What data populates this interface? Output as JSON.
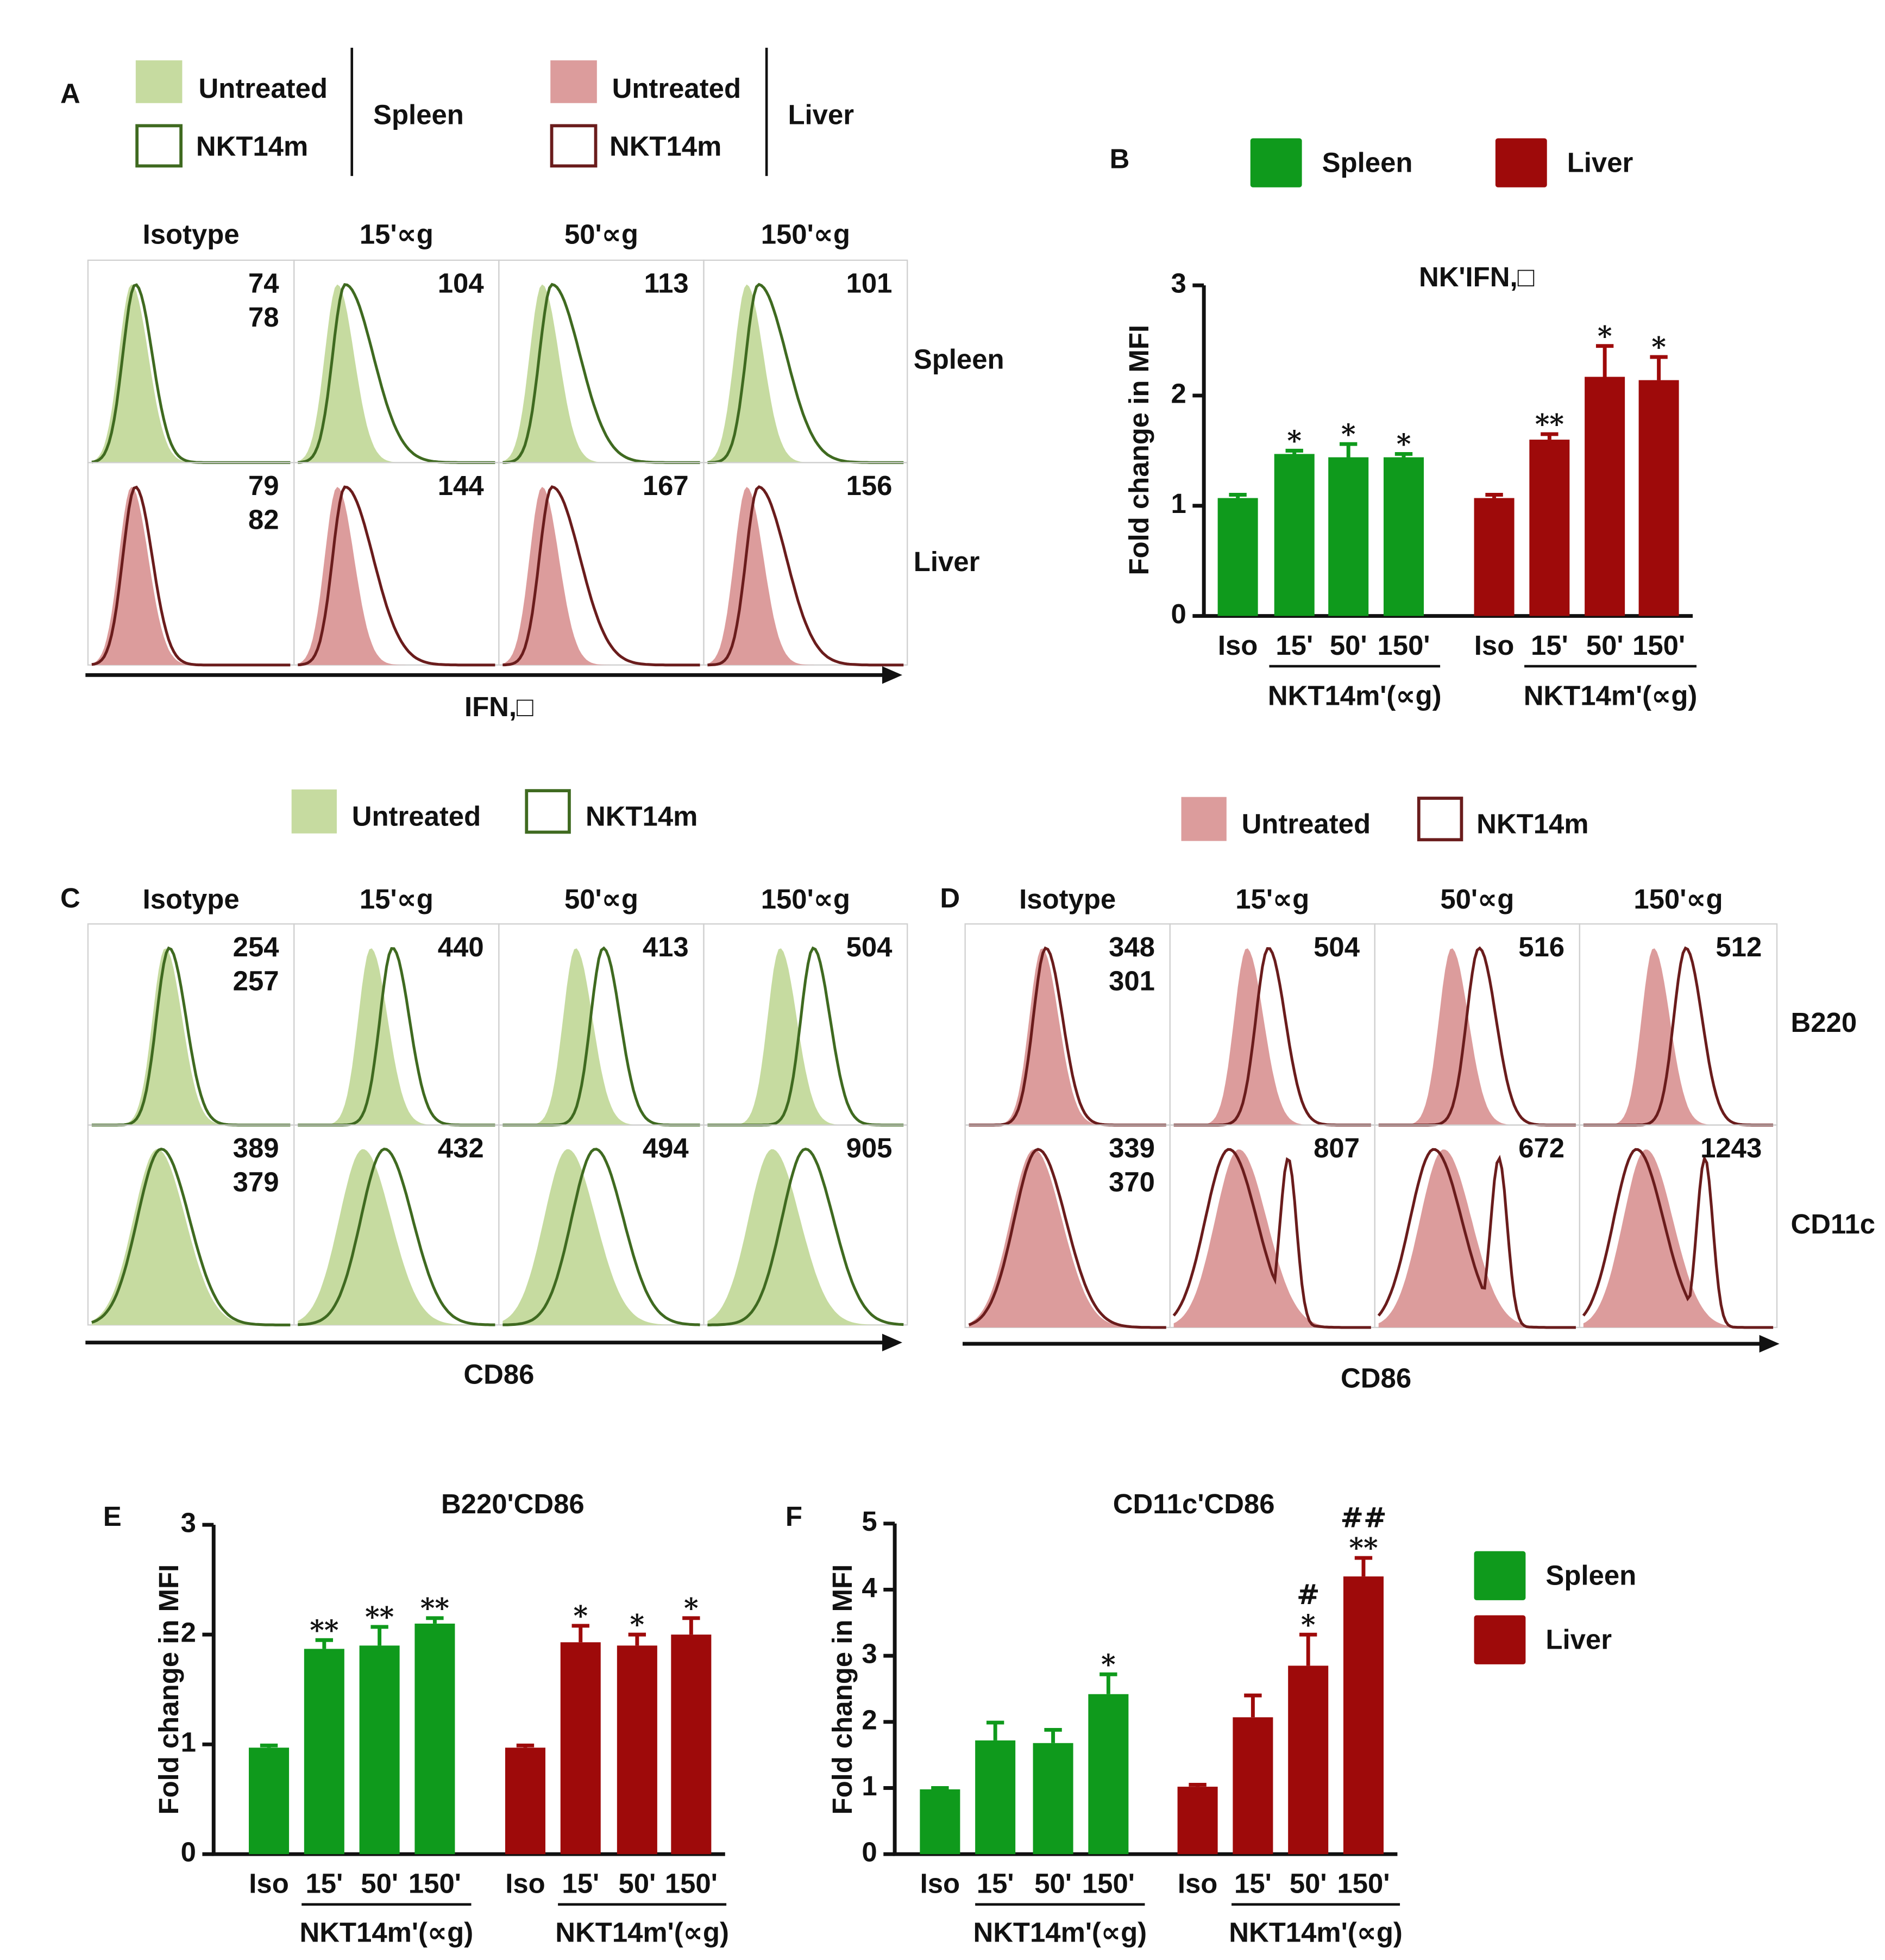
{
  "flow_panels": [
    {
      "letter": "A",
      "legend_groups": [
        {
          "entries": [
            "Untreated",
            "NKT14m"
          ],
          "tissue": "Spleen",
          "colors": {
            "fill": "#c6dba0",
            "line": "#3f6a20"
          }
        },
        {
          "entries": [
            "Untreated",
            "NKT14m"
          ],
          "tissue": "Liver",
          "colors": {
            "fill": "#dc9c9c",
            "line": "#6a1c1c"
          }
        }
      ],
      "columns": [
        "Isotype",
        "15'∝g",
        "50'∝g",
        "150'∝g"
      ],
      "rows": [
        "Spleen",
        "Liver"
      ],
      "mfi": [
        [
          [
            74,
            78
          ],
          [
            104
          ],
          [
            113
          ],
          [
            101
          ]
        ],
        [
          [
            79,
            82
          ],
          [
            144
          ],
          [
            167
          ],
          [
            156
          ]
        ]
      ],
      "x_label": "IFN,□"
    },
    {
      "letter": "C",
      "legend_groups": [
        {
          "entries": [
            "Untreated",
            "NKT14m"
          ],
          "colors": {
            "fill": "#c6dba0",
            "line": "#3f6a20"
          }
        }
      ],
      "columns": [
        "Isotype",
        "15'∝g",
        "50'∝g",
        "150'∝g"
      ],
      "mfi": [
        [
          [
            254,
            257
          ],
          [
            440
          ],
          [
            413
          ],
          [
            504
          ]
        ],
        [
          [
            389,
            379
          ],
          [
            432
          ],
          [
            494
          ],
          [
            905
          ]
        ]
      ],
      "x_label": "CD86"
    },
    {
      "letter": "D",
      "legend_groups": [
        {
          "entries": [
            "Untreated",
            "NKT14m"
          ],
          "colors": {
            "fill": "#dc9c9c",
            "line": "#6a1c1c"
          }
        }
      ],
      "columns": [
        "Isotype",
        "15'∝g",
        "50'∝g",
        "150'∝g"
      ],
      "rows": [
        "B220",
        "CD11c"
      ],
      "mfi": [
        [
          [
            348,
            301
          ],
          [
            504
          ],
          [
            516
          ],
          [
            512
          ]
        ],
        [
          [
            339,
            370
          ],
          [
            807
          ],
          [
            672
          ],
          [
            1243
          ]
        ]
      ],
      "x_label": "CD86"
    }
  ],
  "chart_data": [
    {
      "type": "bar",
      "letter": "B",
      "title": "NK'IFN,□",
      "y_label": "Fold change in MFI",
      "categories": [
        "Iso",
        "15'",
        "50'",
        "150'",
        "Iso",
        "15'",
        "50'",
        "150'"
      ],
      "group_labels": [
        "NKT14m'(∝g)",
        "NKT14m'(∝g)"
      ],
      "series": [
        {
          "name": "Spleen",
          "color": "#0f9a1c",
          "values": [
            1.07,
            1.47,
            1.44,
            1.44,
            null,
            null,
            null,
            null
          ],
          "errors": [
            0.03,
            0.03,
            0.12,
            0.03,
            null,
            null,
            null,
            null
          ],
          "annotations": [
            null,
            [
              "*"
            ],
            [
              "*"
            ],
            [
              "*"
            ],
            null,
            null,
            null,
            null
          ]
        },
        {
          "name": "Liver",
          "color": "#9e0a0a",
          "values": [
            null,
            null,
            null,
            null,
            1.07,
            1.6,
            2.17,
            2.14
          ],
          "errors": [
            null,
            null,
            null,
            null,
            0.03,
            0.05,
            0.28,
            0.21
          ],
          "annotations": [
            null,
            null,
            null,
            null,
            null,
            [
              "**"
            ],
            [
              "*"
            ],
            [
              "*"
            ]
          ]
        }
      ],
      "ylim": [
        0,
        3
      ],
      "yticks": [
        0,
        1,
        2,
        3
      ],
      "legend": "top"
    },
    {
      "type": "bar",
      "letter": "E",
      "title": "B220'CD86",
      "y_label": "Fold change in MFI",
      "categories": [
        "Iso",
        "15'",
        "50'",
        "150'",
        "Iso",
        "15'",
        "50'",
        "150'"
      ],
      "group_labels": [
        "NKT14m'(∝g)",
        "NKT14m'(∝g)"
      ],
      "series": [
        {
          "color": "#0f9a1c",
          "values": [
            0.97,
            1.87,
            1.9,
            2.1,
            null,
            null,
            null,
            null
          ],
          "errors": [
            0.02,
            0.08,
            0.17,
            0.05,
            null,
            null,
            null,
            null
          ],
          "annotations": [
            null,
            [
              "**"
            ],
            [
              "**"
            ],
            [
              "**"
            ],
            null,
            null,
            null,
            null
          ]
        },
        {
          "color": "#9e0a0a",
          "values": [
            null,
            null,
            null,
            null,
            0.97,
            1.93,
            1.9,
            2.0
          ],
          "errors": [
            null,
            null,
            null,
            null,
            0.02,
            0.15,
            0.1,
            0.15
          ],
          "annotations": [
            null,
            null,
            null,
            null,
            null,
            [
              "*"
            ],
            [
              "*"
            ],
            [
              "*"
            ]
          ]
        }
      ],
      "ylim": [
        0,
        3
      ],
      "yticks": [
        0,
        1,
        2,
        3
      ]
    },
    {
      "type": "bar",
      "letter": "F",
      "title": "CD11c'CD86",
      "y_label": "Fold change in MFI",
      "categories": [
        "Iso",
        "15'",
        "50'",
        "150'",
        "Iso",
        "15'",
        "50'",
        "150'"
      ],
      "group_labels": [
        "NKT14m'(∝g)",
        "NKT14m'(∝g)"
      ],
      "series": [
        {
          "name": "Spleen",
          "color": "#0f9a1c",
          "values": [
            0.98,
            1.72,
            1.68,
            2.42,
            null,
            null,
            null,
            null
          ],
          "errors": [
            0.02,
            0.27,
            0.2,
            0.3,
            null,
            null,
            null,
            null
          ],
          "annotations": [
            null,
            null,
            null,
            [
              "*"
            ],
            null,
            null,
            null,
            null
          ]
        },
        {
          "name": "Liver",
          "color": "#9e0a0a",
          "values": [
            null,
            null,
            null,
            null,
            1.02,
            2.07,
            2.85,
            4.2
          ],
          "errors": [
            null,
            null,
            null,
            null,
            0.03,
            0.33,
            0.47,
            0.28
          ],
          "annotations": [
            null,
            null,
            null,
            null,
            null,
            null,
            [
              "#",
              "*"
            ],
            [
              "##",
              "**"
            ]
          ]
        }
      ],
      "ylim": [
        0,
        5
      ],
      "yticks": [
        0,
        1,
        2,
        3,
        4,
        5
      ],
      "legend": "right"
    }
  ]
}
